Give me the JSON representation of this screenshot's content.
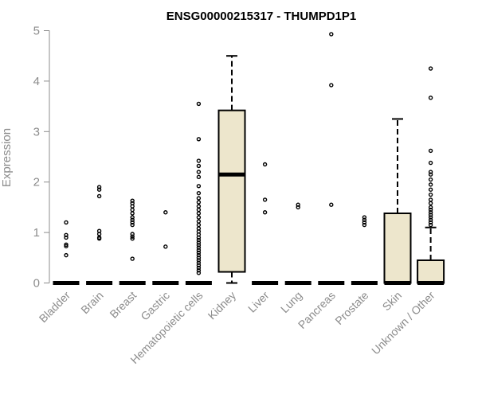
{
  "chart_data": {
    "type": "box",
    "title": "ENSG00000215317 - THUMPD1P1",
    "xlabel": "",
    "ylabel": "Expression",
    "ylim": [
      0,
      5
    ],
    "yticks": [
      0,
      1,
      2,
      3,
      4,
      5
    ],
    "colors": {
      "box_fill": "#ede6cc",
      "stroke": "#000000",
      "axis": "#8c8c8c"
    },
    "categories": [
      "Bladder",
      "Brain",
      "Breast",
      "Gastric",
      "Hematopoietic cells",
      "Kidney",
      "Liver",
      "Lung",
      "Pancreas",
      "Prostate",
      "Skin",
      "Unknown / Other"
    ],
    "boxes": [
      {
        "category": "Bladder",
        "q1": 0,
        "median": 0,
        "q3": 0,
        "whisker_low": 0,
        "whisker_high": 0,
        "outliers": [
          1.2,
          0.95,
          0.9,
          0.76,
          0.73,
          0.55
        ]
      },
      {
        "category": "Brain",
        "q1": 0,
        "median": 0,
        "q3": 0,
        "whisker_low": 0,
        "whisker_high": 0,
        "outliers": [
          1.9,
          1.85,
          1.72,
          1.03,
          0.97,
          0.9,
          0.88
        ]
      },
      {
        "category": "Breast",
        "q1": 0,
        "median": 0,
        "q3": 0,
        "whisker_low": 0,
        "whisker_high": 0,
        "outliers": [
          1.63,
          1.58,
          1.52,
          1.45,
          1.38,
          1.3,
          1.25,
          1.2,
          1.15,
          0.97,
          0.92,
          0.88,
          0.48
        ]
      },
      {
        "category": "Gastric",
        "q1": 0,
        "median": 0,
        "q3": 0,
        "whisker_low": 0,
        "whisker_high": 0,
        "outliers": [
          1.4,
          0.72
        ]
      },
      {
        "category": "Hematopoietic cells",
        "q1": 0,
        "median": 0,
        "q3": 0,
        "whisker_low": 0,
        "whisker_high": 0,
        "outliers": [
          3.55,
          2.85,
          2.42,
          2.32,
          2.2,
          2.1,
          1.92,
          1.78,
          1.68,
          1.6,
          1.52,
          1.45,
          1.38,
          1.3,
          1.22,
          1.15,
          1.08,
          1.02,
          0.96,
          0.9,
          0.85,
          0.8,
          0.75,
          0.7,
          0.65,
          0.6,
          0.55,
          0.5,
          0.45,
          0.4,
          0.35,
          0.3,
          0.25,
          0.2
        ]
      },
      {
        "category": "Kidney",
        "q1": 0.22,
        "median": 2.15,
        "q3": 3.42,
        "whisker_low": 0,
        "whisker_high": 4.5,
        "outliers": []
      },
      {
        "category": "Liver",
        "q1": 0,
        "median": 0,
        "q3": 0,
        "whisker_low": 0,
        "whisker_high": 0,
        "outliers": [
          2.35,
          1.65,
          1.4
        ]
      },
      {
        "category": "Lung",
        "q1": 0,
        "median": 0,
        "q3": 0,
        "whisker_low": 0,
        "whisker_high": 0,
        "outliers": [
          1.55,
          1.5
        ]
      },
      {
        "category": "Pancreas",
        "q1": 0,
        "median": 0,
        "q3": 0,
        "whisker_low": 0,
        "whisker_high": 0,
        "outliers": [
          4.93,
          3.92,
          1.55
        ]
      },
      {
        "category": "Prostate",
        "q1": 0,
        "median": 0,
        "q3": 0,
        "whisker_low": 0,
        "whisker_high": 0,
        "outliers": [
          1.3,
          1.25,
          1.2,
          1.15
        ]
      },
      {
        "category": "Skin",
        "q1": 0,
        "median": 0,
        "q3": 1.38,
        "whisker_low": 0,
        "whisker_high": 3.25,
        "outliers": []
      },
      {
        "category": "Unknown / Other",
        "q1": 0,
        "median": 0,
        "q3": 0.45,
        "whisker_low": 0,
        "whisker_high": 1.1,
        "outliers": [
          4.25,
          3.67,
          2.62,
          2.38,
          2.2,
          2.15,
          2.05,
          1.95,
          1.85,
          1.75,
          1.65,
          1.58,
          1.5,
          1.45,
          1.4,
          1.35,
          1.3,
          1.25,
          1.2,
          1.15
        ]
      }
    ]
  }
}
